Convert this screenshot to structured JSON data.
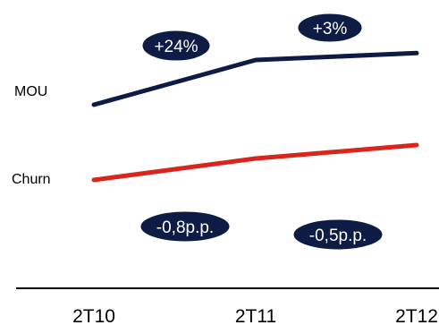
{
  "chart_data": {
    "type": "line",
    "categories": [
      "2T10",
      "2T11",
      "2T12"
    ],
    "series": [
      {
        "name": "MOU",
        "trend": [
          100,
          124,
          127.7
        ],
        "color": "#0d1b45",
        "changes": [
          "+24%",
          "+3%"
        ]
      },
      {
        "name": "Churn",
        "trend": [
          100,
          92,
          87
        ],
        "color": "#d9261c",
        "changes": [
          "-0,8p.p.",
          "-0,5p.p."
        ]
      }
    ],
    "callout_color": "#0d1b45",
    "axis_color": "#000000",
    "grid": false,
    "legend": "none"
  }
}
